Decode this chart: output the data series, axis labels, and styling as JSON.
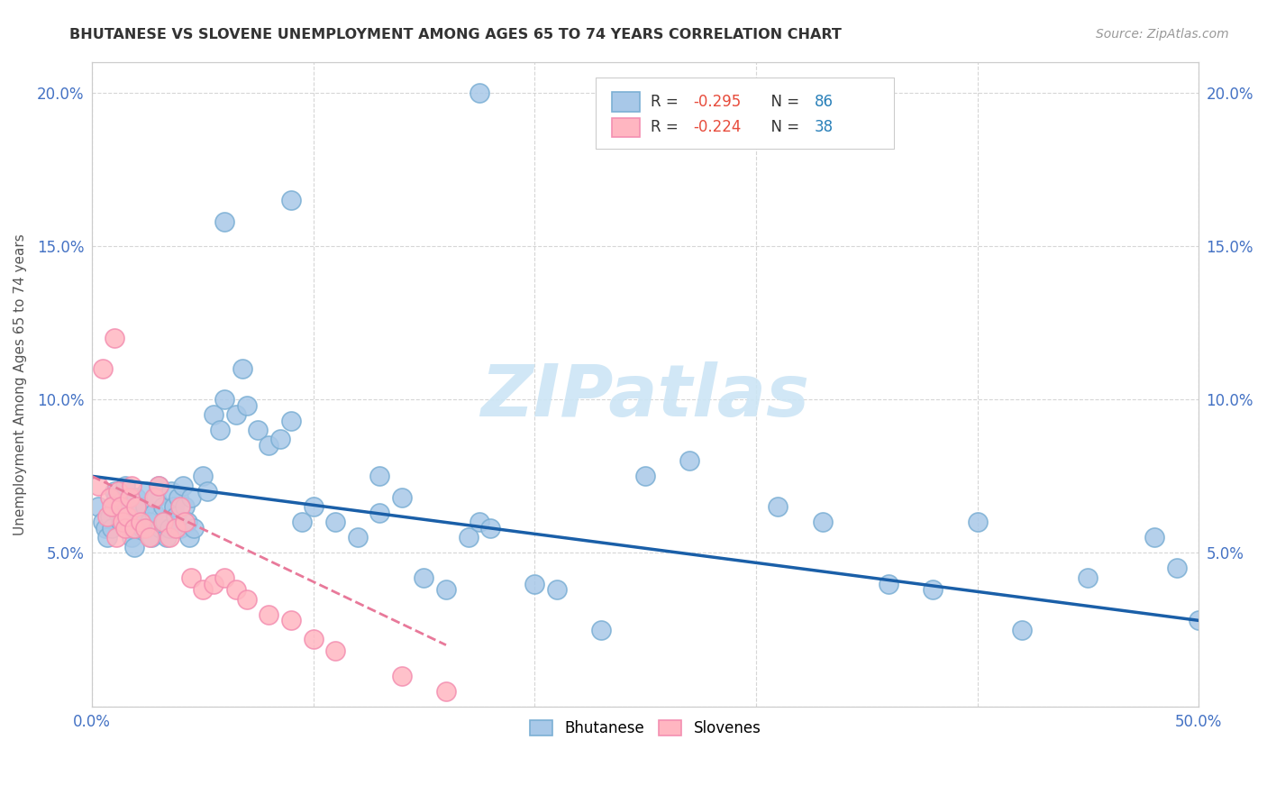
{
  "title": "BHUTANESE VS SLOVENE UNEMPLOYMENT AMONG AGES 65 TO 74 YEARS CORRELATION CHART",
  "source": "Source: ZipAtlas.com",
  "ylabel": "Unemployment Among Ages 65 to 74 years",
  "xlim": [
    0.0,
    0.5
  ],
  "ylim": [
    0.0,
    0.21
  ],
  "blue_color": "#a8c8e8",
  "blue_edge": "#7bafd4",
  "pink_color": "#ffb6c1",
  "pink_edge": "#f48fb1",
  "blue_line_color": "#1a5fa8",
  "pink_line_color": "#e8799a",
  "tick_color": "#4472c4",
  "grid_color": "#cccccc",
  "watermark_color": "#cce5f5",
  "blue_x": [
    0.003,
    0.005,
    0.006,
    0.007,
    0.008,
    0.009,
    0.01,
    0.01,
    0.011,
    0.012,
    0.013,
    0.014,
    0.015,
    0.016,
    0.017,
    0.018,
    0.019,
    0.02,
    0.021,
    0.022,
    0.023,
    0.024,
    0.025,
    0.026,
    0.027,
    0.028,
    0.029,
    0.03,
    0.031,
    0.032,
    0.033,
    0.034,
    0.035,
    0.036,
    0.037,
    0.038,
    0.039,
    0.04,
    0.041,
    0.042,
    0.043,
    0.044,
    0.045,
    0.046,
    0.05,
    0.052,
    0.055,
    0.058,
    0.06,
    0.065,
    0.068,
    0.07,
    0.075,
    0.08,
    0.085,
    0.09,
    0.095,
    0.1,
    0.11,
    0.12,
    0.13,
    0.14,
    0.15,
    0.16,
    0.17,
    0.175,
    0.18,
    0.2,
    0.21,
    0.23,
    0.25,
    0.27,
    0.31,
    0.33,
    0.36,
    0.38,
    0.4,
    0.42,
    0.45,
    0.48,
    0.49,
    0.5,
    0.175,
    0.09,
    0.13,
    0.06
  ],
  "blue_y": [
    0.065,
    0.06,
    0.058,
    0.055,
    0.062,
    0.058,
    0.07,
    0.065,
    0.068,
    0.063,
    0.06,
    0.067,
    0.072,
    0.065,
    0.058,
    0.055,
    0.052,
    0.068,
    0.063,
    0.06,
    0.058,
    0.065,
    0.07,
    0.06,
    0.055,
    0.063,
    0.068,
    0.072,
    0.058,
    0.065,
    0.06,
    0.055,
    0.058,
    0.07,
    0.065,
    0.062,
    0.068,
    0.058,
    0.072,
    0.065,
    0.06,
    0.055,
    0.068,
    0.058,
    0.075,
    0.07,
    0.095,
    0.09,
    0.1,
    0.095,
    0.11,
    0.098,
    0.09,
    0.085,
    0.087,
    0.093,
    0.06,
    0.065,
    0.06,
    0.055,
    0.063,
    0.068,
    0.042,
    0.038,
    0.055,
    0.06,
    0.058,
    0.04,
    0.038,
    0.025,
    0.075,
    0.08,
    0.065,
    0.06,
    0.04,
    0.038,
    0.06,
    0.025,
    0.042,
    0.055,
    0.045,
    0.028,
    0.2,
    0.165,
    0.075,
    0.158
  ],
  "pink_x": [
    0.003,
    0.005,
    0.007,
    0.008,
    0.009,
    0.01,
    0.011,
    0.012,
    0.013,
    0.014,
    0.015,
    0.016,
    0.017,
    0.018,
    0.019,
    0.02,
    0.022,
    0.024,
    0.026,
    0.028,
    0.03,
    0.032,
    0.035,
    0.038,
    0.04,
    0.042,
    0.045,
    0.05,
    0.055,
    0.06,
    0.065,
    0.07,
    0.08,
    0.09,
    0.1,
    0.11,
    0.14,
    0.16
  ],
  "pink_y": [
    0.072,
    0.11,
    0.062,
    0.068,
    0.065,
    0.12,
    0.055,
    0.07,
    0.065,
    0.06,
    0.058,
    0.062,
    0.068,
    0.072,
    0.058,
    0.065,
    0.06,
    0.058,
    0.055,
    0.068,
    0.072,
    0.06,
    0.055,
    0.058,
    0.065,
    0.06,
    0.042,
    0.038,
    0.04,
    0.042,
    0.038,
    0.035,
    0.03,
    0.028,
    0.022,
    0.018,
    0.01,
    0.005
  ],
  "blue_trend_start_y": 0.075,
  "blue_trend_end_y": 0.028,
  "pink_trend_start_y": 0.075,
  "pink_trend_end_y": 0.02
}
